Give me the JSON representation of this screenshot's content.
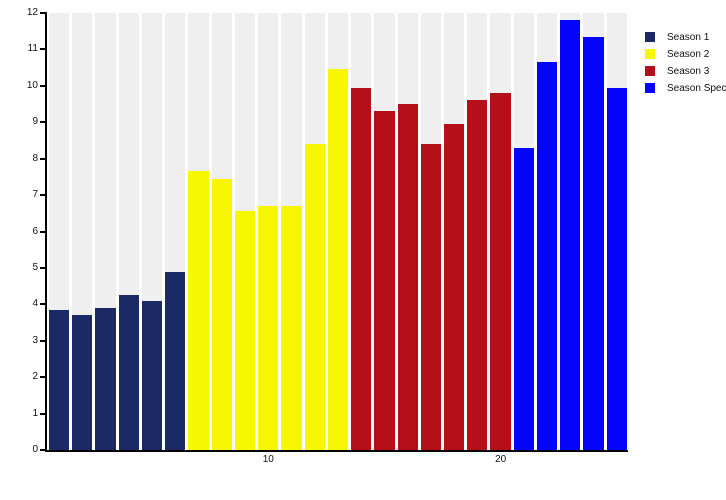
{
  "chart_data": {
    "type": "bar",
    "title": "",
    "xlabel": "",
    "ylabel": "",
    "ylim": [
      0,
      12
    ],
    "yticks": [
      0,
      1,
      2,
      3,
      4,
      5,
      6,
      7,
      8,
      9,
      10,
      11,
      12
    ],
    "xticks": [
      {
        "value": 10,
        "label": "10"
      },
      {
        "value": 20,
        "label": "20"
      }
    ],
    "x": [
      1,
      2,
      3,
      4,
      5,
      6,
      7,
      8,
      9,
      10,
      11,
      12,
      13,
      14,
      15,
      16,
      17,
      18,
      19,
      20,
      21,
      22,
      23,
      24,
      25
    ],
    "series": [
      {
        "name": "Season 1",
        "color": "#1b2a64",
        "x_start": 1,
        "values": [
          3.85,
          3.7,
          3.9,
          4.25,
          4.1,
          4.9
        ]
      },
      {
        "name": "Season 2",
        "color": "#f7f701",
        "x_start": 7,
        "values": [
          7.65,
          7.45,
          6.55,
          6.7,
          6.7,
          8.4,
          10.45
        ]
      },
      {
        "name": "Season 3",
        "color": "#b50f1a",
        "x_start": 14,
        "values": [
          9.95,
          9.3,
          9.5,
          8.4,
          8.95,
          9.6,
          9.8
        ]
      },
      {
        "name": "Season Spec",
        "color": "#0404fa",
        "x_start": 21,
        "values": [
          8.3,
          10.65,
          11.8,
          11.35,
          9.95
        ]
      }
    ],
    "legend": {
      "position": "right",
      "entries": [
        "Season 1",
        "Season 2",
        "Season 3",
        "Season Spec"
      ]
    },
    "grid": false,
    "plot_background_stripe_color": "#f0eff0",
    "axis_color": "#000000"
  }
}
